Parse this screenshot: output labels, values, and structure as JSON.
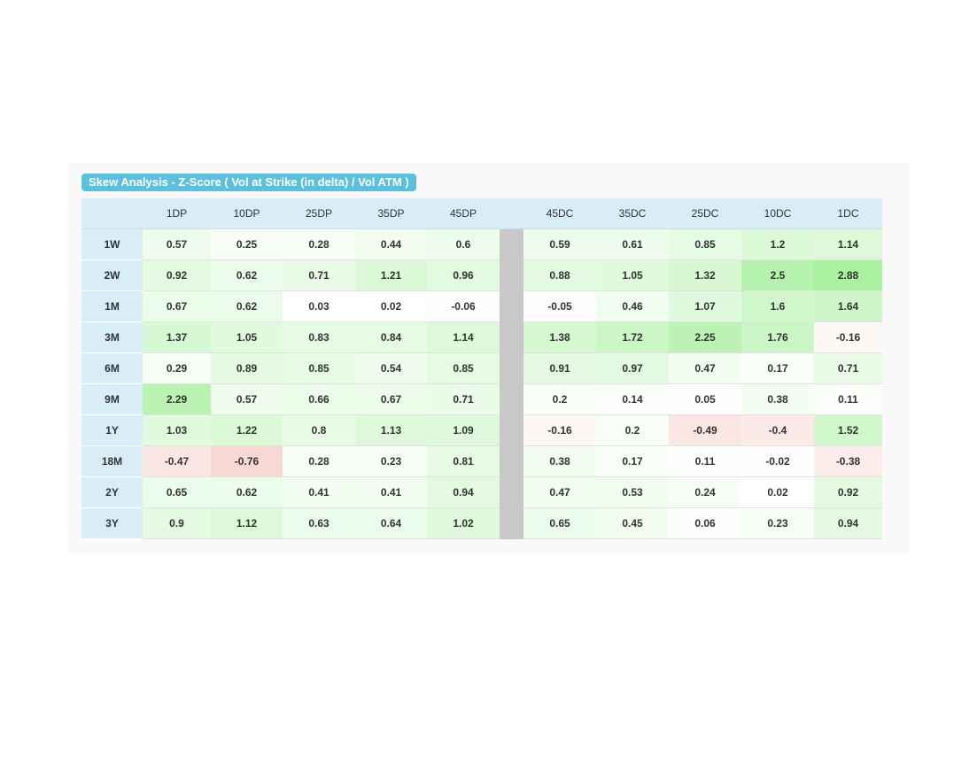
{
  "panel": {
    "title": "Skew Analysis - Z-Score ( Vol at Strike (in delta) / Vol ATM )"
  },
  "chart_data": {
    "type": "heatmap",
    "title": "Skew Analysis - Z-Score ( Vol at Strike (in delta) / Vol ATM )",
    "columns_put": [
      "1DP",
      "10DP",
      "25DP",
      "35DP",
      "45DP"
    ],
    "columns_call": [
      "45DC",
      "35DC",
      "25DC",
      "10DC",
      "1DC"
    ],
    "rows": [
      "1W",
      "2W",
      "1M",
      "3M",
      "6M",
      "9M",
      "1Y",
      "18M",
      "2Y",
      "3Y"
    ],
    "values_put": [
      [
        0.57,
        0.25,
        0.28,
        0.44,
        0.6
      ],
      [
        0.92,
        0.62,
        0.71,
        1.21,
        0.96
      ],
      [
        0.67,
        0.62,
        0.03,
        0.02,
        -0.06
      ],
      [
        1.37,
        1.05,
        0.83,
        0.84,
        1.14
      ],
      [
        0.29,
        0.89,
        0.85,
        0.54,
        0.85
      ],
      [
        2.29,
        0.57,
        0.66,
        0.67,
        0.71
      ],
      [
        1.03,
        1.22,
        0.8,
        1.13,
        1.09
      ],
      [
        -0.47,
        -0.76,
        0.28,
        0.23,
        0.81
      ],
      [
        0.65,
        0.62,
        0.41,
        0.41,
        0.94
      ],
      [
        0.9,
        1.12,
        0.63,
        0.64,
        1.02
      ]
    ],
    "values_call": [
      [
        0.59,
        0.61,
        0.85,
        1.2,
        1.14
      ],
      [
        0.88,
        1.05,
        1.32,
        2.5,
        2.88
      ],
      [
        -0.05,
        0.46,
        1.07,
        1.6,
        1.64
      ],
      [
        1.38,
        1.72,
        2.25,
        1.76,
        -0.16
      ],
      [
        0.91,
        0.97,
        0.47,
        0.17,
        0.71
      ],
      [
        0.2,
        0.14,
        0.05,
        0.38,
        0.11
      ],
      [
        -0.16,
        0.2,
        -0.49,
        -0.4,
        1.52
      ],
      [
        0.38,
        0.17,
        0.11,
        -0.02,
        -0.38
      ],
      [
        0.47,
        0.53,
        0.24,
        0.02,
        0.92
      ],
      [
        0.65,
        0.45,
        0.06,
        0.23,
        0.94
      ]
    ],
    "colors": {
      "positive": "#a9f0a0",
      "negative": "#f7d8d3",
      "neutral": "#ffffff",
      "separator": "#c8c8c8",
      "header": "#d9edf7"
    }
  }
}
